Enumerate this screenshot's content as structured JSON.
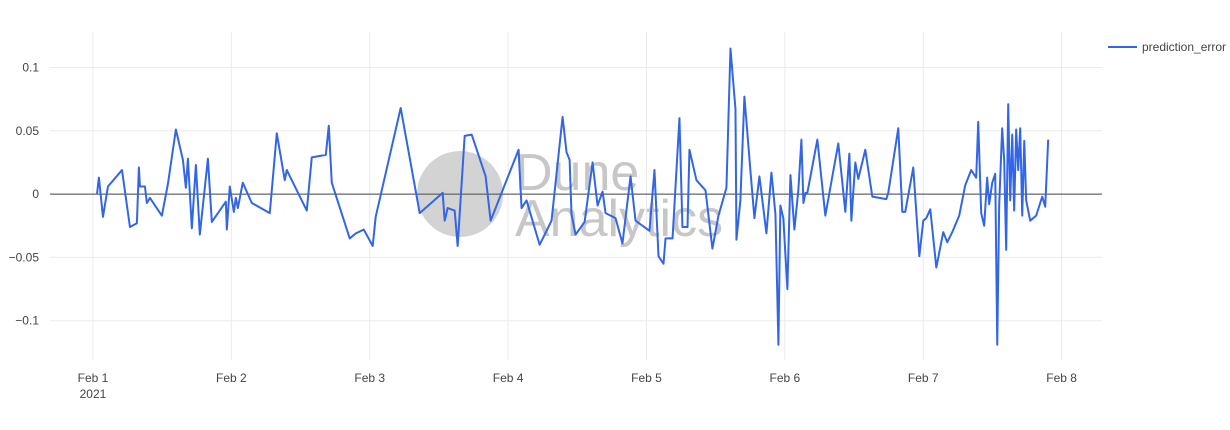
{
  "chart_data": {
    "type": "line",
    "watermark": [
      "Dune",
      "Analytics"
    ],
    "x": [
      "2021-02-01 00:42",
      "2021-02-01 01:02",
      "2021-02-01 01:44",
      "2021-02-01 02:36",
      "2021-02-01 05:02",
      "2021-02-01 06:25",
      "2021-02-01 07:37",
      "2021-02-01 07:58",
      "2021-02-01 08:09",
      "2021-02-01 09:01",
      "2021-02-01 09:21",
      "2021-02-01 09:53",
      "2021-02-01 11:57",
      "2021-02-01 13:00",
      "2021-02-01 14:23",
      "2021-02-01 15:36",
      "2021-02-01 16:07",
      "2021-02-01 16:28",
      "2021-02-01 17:09",
      "2021-02-01 17:51",
      "2021-02-01 18:32",
      "2021-02-01 19:56",
      "2021-02-01 20:37",
      "2021-02-01 23:03",
      "2021-02-01 23:13",
      "2021-02-01 23:44",
      "2021-02-02 00:26",
      "2021-02-02 00:47",
      "2021-02-02 01:08",
      "2021-02-02 01:59",
      "2021-02-02 03:33",
      "2021-02-02 06:40",
      "2021-02-02 07:53",
      "2021-02-02 09:16",
      "2021-02-02 09:37",
      "2021-02-02 13:05",
      "2021-02-02 13:57",
      "2021-02-02 16:23",
      "2021-02-02 16:54",
      "2021-02-02 17:25",
      "2021-02-02 20:32",
      "2021-02-02 21:35",
      "2021-02-02 22:58",
      "2021-02-03 00:31",
      "2021-02-03 01:02",
      "2021-02-03 05:22",
      "2021-02-03 08:40",
      "2021-02-03 12:39",
      "2021-02-03 13:00",
      "2021-02-03 13:31",
      "2021-02-03 14:44",
      "2021-02-03 15:15",
      "2021-02-03 16:28",
      "2021-02-03 17:41",
      "2021-02-03 20:06",
      "2021-02-03 20:58",
      "2021-02-04 01:49",
      "2021-02-04 02:20",
      "2021-02-04 03:12",
      "2021-02-04 05:28",
      "2021-02-04 07:32",
      "2021-02-04 09:27",
      "2021-02-04 10:08",
      "2021-02-04 10:40",
      "2021-02-04 11:00",
      "2021-02-04 11:42",
      "2021-02-04 13:16",
      "2021-02-04 14:39",
      "2021-02-04 15:31",
      "2021-02-04 16:23",
      "2021-02-04 16:54",
      "2021-02-04 18:38",
      "2021-02-04 19:50",
      "2021-02-04 21:14",
      "2021-02-04 22:06",
      "2021-02-05 00:31",
      "2021-02-05 01:23",
      "2021-02-05 02:05",
      "2021-02-05 02:57",
      "2021-02-05 03:18",
      "2021-02-05 04:31",
      "2021-02-05 05:43",
      "2021-02-05 06:14",
      "2021-02-05 07:07",
      "2021-02-05 07:27",
      "2021-02-05 08:40",
      "2021-02-05 10:14",
      "2021-02-05 11:26",
      "2021-02-05 12:29",
      "2021-02-05 13:52",
      "2021-02-05 14:34",
      "2021-02-05 15:26",
      "2021-02-05 15:36",
      "2021-02-05 16:17",
      "2021-02-05 16:59",
      "2021-02-05 18:01",
      "2021-02-05 18:43",
      "2021-02-05 19:35",
      "2021-02-05 20:48",
      "2021-02-05 21:40",
      "2021-02-05 22:22",
      "2021-02-05 22:53",
      "2021-02-05 23:13",
      "2021-02-05 23:44",
      "2021-02-06 00:26",
      "2021-02-06 00:58",
      "2021-02-06 01:39",
      "2021-02-06 02:20",
      "2021-02-06 02:52",
      "2021-02-06 03:13",
      "2021-02-06 03:34",
      "2021-02-06 03:54",
      "2021-02-06 05:38",
      "2021-02-06 07:01",
      "2021-02-06 08:14",
      "2021-02-06 09:16",
      "2021-02-06 10:29",
      "2021-02-06 11:11",
      "2021-02-06 11:32",
      "2021-02-06 12:13",
      "2021-02-06 12:44",
      "2021-02-06 13:57",
      "2021-02-06 15:10",
      "2021-02-06 17:35",
      "2021-02-06 17:56",
      "2021-02-06 19:40",
      "2021-02-06 20:22",
      "2021-02-06 20:53",
      "2021-02-06 22:16",
      "2021-02-06 23:19",
      "2021-02-07 00:00",
      "2021-02-07 00:31",
      "2021-02-07 01:13",
      "2021-02-07 02:16",
      "2021-02-07 03:28",
      "2021-02-07 04:10",
      "2021-02-07 05:02",
      "2021-02-07 06:14",
      "2021-02-07 07:17",
      "2021-02-07 08:19",
      "2021-02-07 09:11",
      "2021-02-07 09:32",
      "2021-02-07 10:03",
      "2021-02-07 10:34",
      "2021-02-07 11:05",
      "2021-02-07 11:26",
      "2021-02-07 11:58",
      "2021-02-07 12:29",
      "2021-02-07 12:50",
      "2021-02-07 13:10",
      "2021-02-07 13:41",
      "2021-02-07 14:02",
      "2021-02-07 14:23",
      "2021-02-07 14:44",
      "2021-02-07 15:05",
      "2021-02-07 15:26",
      "2021-02-07 15:46",
      "2021-02-07 16:07",
      "2021-02-07 16:28",
      "2021-02-07 16:49",
      "2021-02-07 17:10",
      "2021-02-07 17:31",
      "2021-02-07 17:51",
      "2021-02-07 18:12",
      "2021-02-07 18:33",
      "2021-02-07 19:35",
      "2021-02-07 20:38",
      "2021-02-07 21:09",
      "2021-02-07 21:40"
    ],
    "series": [
      {
        "name": "prediction_error",
        "color": "#3366e6",
        "values": [
          0,
          0.013,
          -0.018,
          0.006,
          0.019,
          -0.026,
          -0.023,
          0.021,
          0.006,
          0.006,
          -0.007,
          -0.003,
          -0.017,
          0.008,
          0.051,
          0.027,
          0.005,
          0.028,
          -0.027,
          0.023,
          -0.032,
          0.028,
          -0.022,
          -0.006,
          -0.028,
          0.006,
          -0.014,
          -0.003,
          -0.011,
          0.009,
          -0.007,
          -0.015,
          0.048,
          0.011,
          0.019,
          -0.013,
          0.029,
          0.031,
          0.054,
          0.009,
          -0.035,
          -0.031,
          -0.028,
          -0.041,
          -0.018,
          0.068,
          -0.015,
          0.001,
          -0.021,
          -0.011,
          -0.013,
          -0.041,
          0.046,
          0.047,
          0.014,
          -0.021,
          0.035,
          -0.011,
          -0.005,
          -0.04,
          -0.021,
          0.061,
          0.033,
          0.027,
          -0.016,
          -0.032,
          -0.022,
          0.025,
          -0.009,
          0.002,
          -0.015,
          -0.019,
          -0.039,
          0.014,
          -0.021,
          -0.029,
          0.019,
          -0.049,
          -0.055,
          -0.035,
          -0.035,
          0.06,
          -0.026,
          -0.026,
          0.035,
          0.011,
          0.003,
          -0.043,
          -0.017,
          0.005,
          0.115,
          0.067,
          -0.036,
          -0.005,
          0.077,
          0.019,
          -0.019,
          0.014,
          -0.031,
          0.017,
          -0.016,
          -0.119,
          -0.009,
          -0.019,
          -0.075,
          0.015,
          -0.028,
          0.003,
          0.043,
          -0.007,
          0.001,
          0.001,
          0.043,
          -0.017,
          0.014,
          0.04,
          -0.014,
          0.032,
          -0.021,
          0.025,
          0.012,
          0.035,
          -0.002,
          -0.004,
          0.001,
          0.052,
          -0.014,
          -0.014,
          0.021,
          -0.049,
          -0.021,
          -0.019,
          -0.012,
          -0.058,
          -0.03,
          -0.038,
          -0.03,
          -0.017,
          0.007,
          0.019,
          0.013,
          0.057,
          -0.015,
          -0.025,
          0.013,
          -0.008,
          0.009,
          0.016,
          -0.119,
          -0.009,
          0.052,
          0.027,
          -0.044,
          0.071,
          -0.005,
          0.047,
          -0.013,
          0.051,
          0.019,
          0.052,
          -0.017,
          0.042,
          -0.005,
          -0.013,
          -0.021,
          -0.017,
          -0.002,
          -0.01,
          0.043
        ]
      }
    ],
    "xlim": [
      "2021-01-31 16:33",
      "2021-02-08 07:00"
    ],
    "xticks": [
      {
        "value": "2021-02-01",
        "label": "Feb 1\n2021"
      },
      {
        "value": "2021-02-02",
        "label": "Feb 2"
      },
      {
        "value": "2021-02-03",
        "label": "Feb 3"
      },
      {
        "value": "2021-02-04",
        "label": "Feb 4"
      },
      {
        "value": "2021-02-05",
        "label": "Feb 5"
      },
      {
        "value": "2021-02-06",
        "label": "Feb 6"
      },
      {
        "value": "2021-02-07",
        "label": "Feb 7"
      },
      {
        "value": "2021-02-08",
        "label": "Feb 8"
      }
    ],
    "ylim": [
      -0.131,
      0.128
    ],
    "yticks": [
      {
        "value": -0.1,
        "label": "−0.1"
      },
      {
        "value": -0.05,
        "label": "−0.05"
      },
      0,
      0.05,
      0.1
    ],
    "grid": true,
    "zeroline": true,
    "legend": "top-right"
  }
}
